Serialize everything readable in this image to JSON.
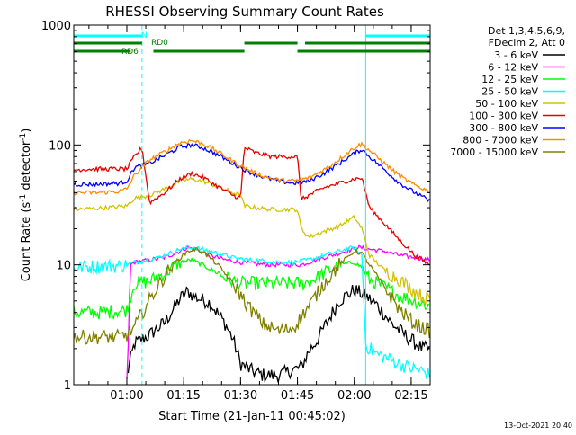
{
  "chart_data": {
    "type": "line",
    "title": "RHESSI Observing Summary Count Rates",
    "xlabel": "Start Time (21-Jan-11 00:45:02)",
    "ylabel_parts": [
      "Count Rate (s",
      "-1",
      " detector",
      "-1",
      ")"
    ],
    "y_scale": "log",
    "ylim": [
      1,
      1000
    ],
    "y_ticks": [
      {
        "v": 1,
        "label": "1"
      },
      {
        "v": 10,
        "label": "10"
      },
      {
        "v": 100,
        "label": "100"
      },
      {
        "v": 1000,
        "label": "1000"
      }
    ],
    "xlim": [
      46,
      140
    ],
    "x_ticks": [
      {
        "v": 60,
        "label": "01:00"
      },
      {
        "v": 75,
        "label": "01:15"
      },
      {
        "v": 90,
        "label": "01:30"
      },
      {
        "v": 105,
        "label": "01:45"
      },
      {
        "v": 120,
        "label": "02:00"
      },
      {
        "v": 135,
        "label": "02:15"
      }
    ],
    "x_minor_step": 5,
    "legend_header": [
      "Det 1,3,4,5,6,9,",
      "FDecim 2, Att 0"
    ],
    "legend_position": "right",
    "footer_stamp": "13-Oct-2021 20:40",
    "flags": [
      {
        "name": "N",
        "color": "#00ffff",
        "segments": [
          [
            46,
            64
          ],
          [
            123,
            140
          ]
        ],
        "label": "N"
      },
      {
        "name": "RD0",
        "color": "#008000",
        "segments": [
          [
            46,
            64
          ],
          [
            91,
            105
          ],
          [
            107,
            140
          ]
        ],
        "label": "RD0"
      },
      {
        "name": "RD6",
        "color": "#008000",
        "segments": [
          [
            46,
            61
          ],
          [
            67,
            91
          ],
          [
            105,
            140
          ]
        ],
        "label": "RD6"
      }
    ],
    "event_lines": [
      {
        "x": 64,
        "style": "dashed"
      },
      {
        "x": 123,
        "style": "solid"
      },
      {
        "x": 140,
        "style": "dashed"
      }
    ],
    "series": [
      {
        "name": "3 - 6 keV",
        "color": "#000000",
        "x": [
          60,
          62,
          66,
          70,
          74,
          76,
          78,
          82,
          86,
          88,
          90,
          93,
          96,
          100,
          103,
          106,
          108,
          110,
          113,
          116,
          120,
          123,
          126,
          130,
          134,
          138,
          140
        ],
        "y": [
          1.2,
          2.2,
          2.6,
          3.3,
          5.2,
          6,
          5.4,
          4.8,
          3.2,
          2.4,
          1.5,
          1.3,
          1.2,
          1.2,
          1.3,
          1.4,
          1.9,
          2.3,
          3.4,
          5,
          6.2,
          5.5,
          4.6,
          3.2,
          2.5,
          2,
          2
        ]
      },
      {
        "name": "6 - 12 keV",
        "color": "#ff00ff",
        "x": [
          60,
          61,
          62,
          66,
          70,
          74,
          76,
          78,
          82,
          86,
          88,
          90,
          94,
          98,
          102,
          106,
          108,
          110,
          114,
          118,
          121,
          124,
          128,
          132,
          136,
          140
        ],
        "y": [
          1,
          10,
          10.5,
          11,
          11.5,
          13,
          14,
          13.5,
          12,
          11,
          10.8,
          10.5,
          10.2,
          10,
          10,
          10,
          10.5,
          11,
          12,
          13,
          14,
          13.5,
          13,
          12,
          11.5,
          11
        ]
      },
      {
        "name": "12 - 25 keV",
        "color": "#00ff00",
        "x": [
          46,
          53,
          60,
          62,
          66,
          70,
          74,
          77,
          80,
          84,
          88,
          90,
          92,
          96,
          100,
          104,
          106,
          108,
          112,
          116,
          120,
          122,
          124,
          128,
          132,
          136,
          140
        ],
        "y": [
          4,
          4,
          4.2,
          7,
          7.3,
          8.5,
          10.5,
          11,
          10,
          8.5,
          7.3,
          7,
          7,
          7,
          7,
          7,
          7,
          7.2,
          8.5,
          10,
          10.5,
          9.5,
          7.5,
          6.5,
          5.5,
          5,
          4.5
        ]
      },
      {
        "name": "25 - 50 keV",
        "color": "#00ffff",
        "x": [
          46,
          52,
          58,
          60,
          62,
          66,
          70,
          74,
          77,
          80,
          84,
          88,
          92,
          96,
          100,
          104,
          108,
          112,
          116,
          120,
          122,
          123,
          124,
          126,
          130,
          134,
          138,
          140
        ],
        "y": [
          9.5,
          9.7,
          9.8,
          10,
          10.5,
          11,
          12,
          13.5,
          14,
          13.5,
          12.5,
          11.5,
          11,
          10.8,
          10.5,
          10.5,
          11,
          12,
          13,
          14,
          12,
          2.2,
          2,
          1.8,
          1.6,
          1.4,
          1.3,
          1.2
        ]
      },
      {
        "name": "50 - 100 keV",
        "color": "#d2c200",
        "x": [
          46,
          55,
          60,
          62,
          66,
          70,
          74,
          77,
          80,
          84,
          88,
          90,
          91,
          94,
          98,
          102,
          105,
          106,
          108,
          112,
          116,
          120,
          122,
          124,
          128,
          132,
          136,
          140
        ],
        "y": [
          29,
          30,
          31,
          36,
          38,
          43,
          50,
          52,
          50,
          45,
          40,
          38,
          31,
          30,
          29,
          29,
          29,
          20,
          17,
          19,
          21,
          25,
          20,
          12,
          9,
          7.5,
          6,
          5
        ]
      },
      {
        "name": "100 - 300 keV",
        "color": "#e80000",
        "x": [
          46,
          50,
          55,
          60,
          62,
          64,
          66,
          70,
          74,
          77,
          80,
          84,
          88,
          90,
          91,
          94,
          98,
          102,
          105,
          106,
          108,
          112,
          116,
          120,
          122,
          124,
          128,
          132,
          136,
          140
        ],
        "y": [
          62,
          63,
          63,
          63,
          80,
          95,
          33,
          40,
          52,
          58,
          54,
          45,
          38,
          36,
          95,
          86,
          80,
          80,
          80,
          35,
          38,
          44,
          48,
          52,
          53,
          30,
          22,
          16,
          12,
          10
        ]
      },
      {
        "name": "300 - 800 keV",
        "color": "#0000ff",
        "x": [
          46,
          52,
          58,
          60,
          62,
          66,
          70,
          74,
          77,
          80,
          84,
          88,
          92,
          96,
          100,
          104,
          108,
          112,
          116,
          120,
          122,
          124,
          128,
          132,
          136,
          140
        ],
        "y": [
          47,
          47,
          48,
          50,
          65,
          70,
          82,
          96,
          100,
          95,
          83,
          70,
          60,
          54,
          50,
          48,
          50,
          58,
          70,
          85,
          92,
          80,
          62,
          48,
          40,
          34
        ]
      },
      {
        "name": "800 - 7000 keV",
        "color": "#ff8c00",
        "x": [
          46,
          52,
          58,
          60,
          62,
          66,
          70,
          74,
          77,
          80,
          84,
          88,
          92,
          96,
          100,
          104,
          108,
          112,
          116,
          120,
          122,
          124,
          128,
          132,
          136,
          140
        ],
        "y": [
          40,
          40,
          41,
          43,
          56,
          75,
          88,
          104,
          109,
          103,
          88,
          73,
          62,
          55,
          51,
          50,
          53,
          62,
          76,
          95,
          102,
          90,
          70,
          55,
          46,
          41
        ]
      },
      {
        "name": "7000 - 15000 keV",
        "color": "#808000",
        "x": [
          46,
          52,
          58,
          60,
          62,
          65,
          68,
          72,
          76,
          78,
          80,
          84,
          88,
          92,
          96,
          100,
          104,
          108,
          112,
          116,
          120,
          122,
          124,
          128,
          132,
          136,
          140
        ],
        "y": [
          2.5,
          2.5,
          2.5,
          2.6,
          3,
          4.5,
          6.5,
          10,
          13,
          13.5,
          13,
          10,
          7,
          4.5,
          3.2,
          2.8,
          3,
          4.5,
          7,
          10,
          13,
          12.5,
          10,
          6.5,
          4.2,
          3.2,
          2.8
        ]
      }
    ]
  }
}
